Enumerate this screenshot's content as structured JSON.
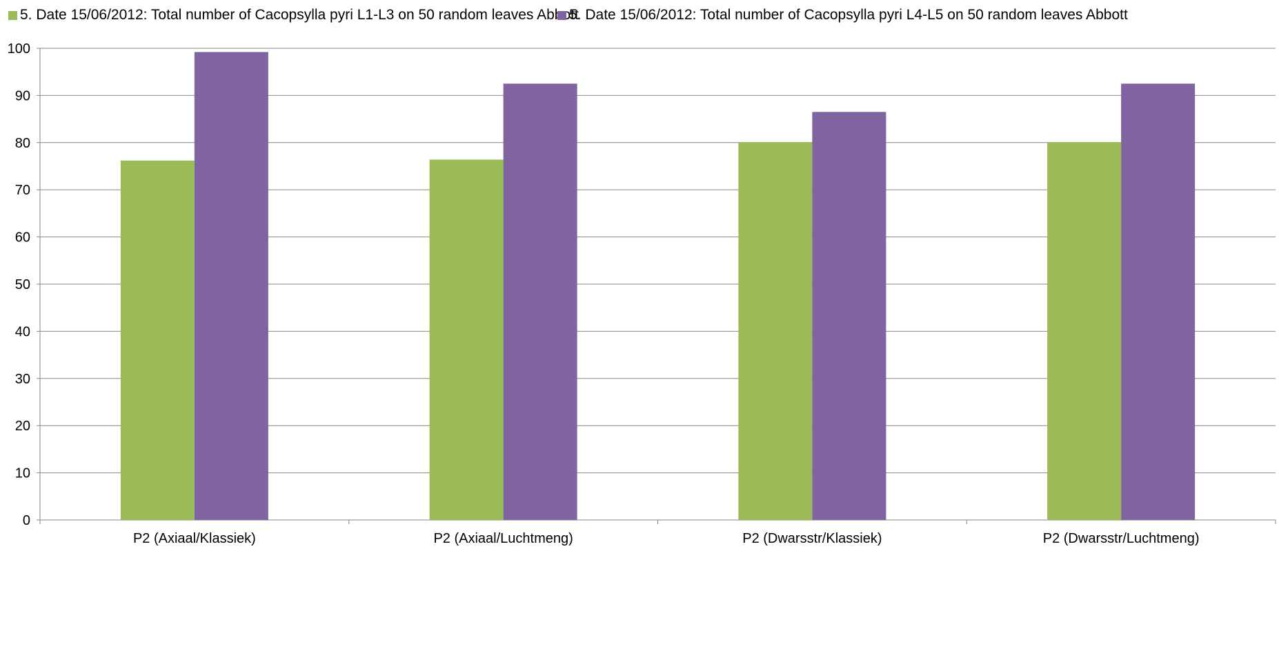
{
  "colors": {
    "series_1": "#9BBB59",
    "series_2": "#8064A2",
    "gridline": "#868686",
    "axis": "#868686"
  },
  "chart_data": {
    "type": "bar",
    "categories": [
      "P2 (Axiaal/Klassiek)",
      "P2 (Axiaal/Luchtmeng)",
      "P2 (Dwarsstr/Klassiek)",
      "P2 (Dwarsstr/Luchtmeng)"
    ],
    "series": [
      {
        "name": "5. Date 15/06/2012: Total number of Cacopsylla pyri L1-L3 on 50 random leaves Abbott",
        "values": [
          76.2,
          76.4,
          80.1,
          80.1
        ]
      },
      {
        "name": "5. Date 15/06/2012: Total number of Cacopsylla pyri L4-L5 on 50 random leaves Abbott",
        "values": [
          99.2,
          92.5,
          86.5,
          92.5
        ]
      }
    ],
    "ylim": [
      0,
      100
    ],
    "yticks": [
      0,
      10,
      20,
      30,
      40,
      50,
      60,
      70,
      80,
      90,
      100
    ],
    "grid": true,
    "legend_position": "top"
  }
}
